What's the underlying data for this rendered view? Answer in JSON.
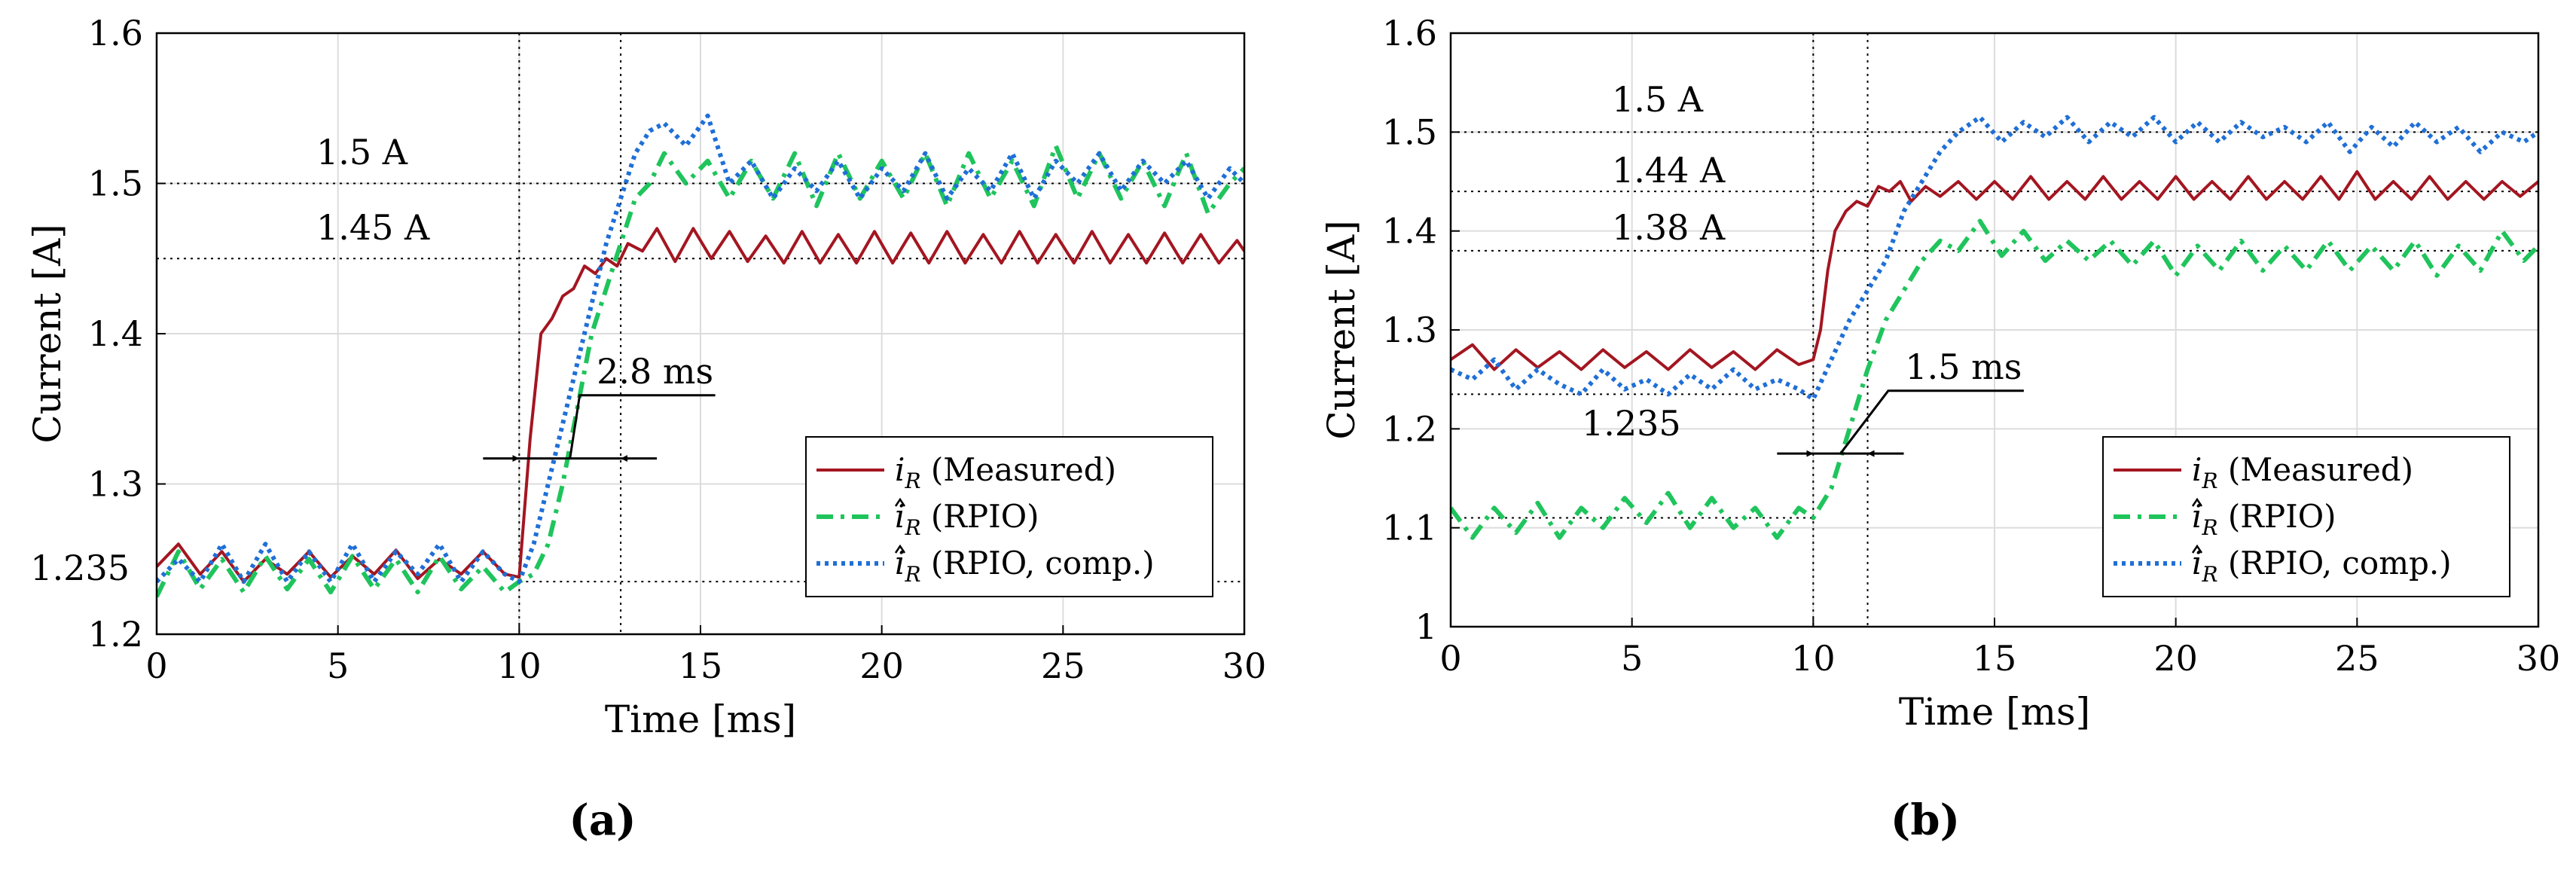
{
  "chart_data": [
    {
      "type": "line",
      "panel_label": "(a)",
      "xlabel": "Time [ms]",
      "ylabel": "Current [A]",
      "xlim": [
        0,
        30
      ],
      "ylim": [
        1.2,
        1.6
      ],
      "xticks": [
        0,
        5,
        10,
        15,
        20,
        25,
        30
      ],
      "yticks": [
        1.2,
        1.3,
        1.4,
        1.5,
        1.6
      ],
      "ytick_labels": [
        "1.2",
        "1.3",
        "1.4",
        "1.5",
        "1.6"
      ],
      "grid": true,
      "legend_position": "lower-right",
      "series": [
        {
          "name": "Measured",
          "symbol": "i",
          "hat": false,
          "color": "#a31621",
          "style": "solid",
          "x": [
            0,
            0.6,
            1.2,
            1.8,
            2.4,
            3,
            3.6,
            4.2,
            4.8,
            5.4,
            6,
            6.6,
            7.2,
            7.8,
            8.4,
            9,
            9.6,
            10,
            10.3,
            10.6,
            10.9,
            11.2,
            11.5,
            11.8,
            12.1,
            12.4,
            12.7,
            13,
            13.4,
            13.8,
            14.3,
            14.8,
            15.3,
            15.8,
            16.3,
            16.8,
            17.3,
            17.8,
            18.3,
            18.8,
            19.3,
            19.8,
            20.3,
            20.8,
            21.3,
            21.8,
            22.3,
            22.8,
            23.3,
            23.8,
            24.3,
            24.8,
            25.3,
            25.8,
            26.3,
            26.8,
            27.3,
            27.8,
            28.3,
            28.8,
            29.3,
            29.8,
            30
          ],
          "y": [
            1.245,
            1.26,
            1.24,
            1.255,
            1.235,
            1.25,
            1.24,
            1.255,
            1.238,
            1.252,
            1.24,
            1.256,
            1.237,
            1.25,
            1.24,
            1.255,
            1.24,
            1.238,
            1.33,
            1.4,
            1.41,
            1.425,
            1.43,
            1.445,
            1.44,
            1.45,
            1.445,
            1.46,
            1.455,
            1.47,
            1.448,
            1.47,
            1.45,
            1.468,
            1.448,
            1.465,
            1.447,
            1.468,
            1.447,
            1.466,
            1.447,
            1.468,
            1.447,
            1.467,
            1.447,
            1.468,
            1.447,
            1.466,
            1.447,
            1.468,
            1.447,
            1.466,
            1.447,
            1.468,
            1.447,
            1.466,
            1.447,
            1.467,
            1.447,
            1.466,
            1.447,
            1.462,
            1.455
          ]
        },
        {
          "name": "RPIO",
          "symbol": "i",
          "hat": true,
          "color": "#1fc45c",
          "style": "dashdot",
          "x": [
            0,
            0.6,
            1.2,
            1.8,
            2.4,
            3,
            3.6,
            4.2,
            4.8,
            5.4,
            6,
            6.6,
            7.2,
            7.8,
            8.4,
            9,
            9.6,
            10,
            10.4,
            10.8,
            11.2,
            11.6,
            12,
            12.4,
            12.8,
            13.2,
            13.6,
            14,
            14.6,
            15.2,
            15.8,
            16.4,
            17,
            17.6,
            18.2,
            18.8,
            19.4,
            20,
            20.6,
            21.2,
            21.8,
            22.4,
            23,
            23.6,
            24.2,
            24.8,
            25.4,
            26,
            26.6,
            27.2,
            27.8,
            28.4,
            29,
            29.6,
            30
          ],
          "y": [
            1.225,
            1.255,
            1.23,
            1.25,
            1.228,
            1.252,
            1.23,
            1.25,
            1.228,
            1.252,
            1.23,
            1.25,
            1.228,
            1.252,
            1.23,
            1.245,
            1.228,
            1.235,
            1.24,
            1.26,
            1.3,
            1.35,
            1.4,
            1.43,
            1.46,
            1.49,
            1.5,
            1.52,
            1.5,
            1.515,
            1.49,
            1.515,
            1.49,
            1.52,
            1.485,
            1.52,
            1.49,
            1.515,
            1.49,
            1.52,
            1.485,
            1.52,
            1.49,
            1.515,
            1.485,
            1.525,
            1.49,
            1.52,
            1.49,
            1.515,
            1.485,
            1.52,
            1.48,
            1.5,
            1.51
          ]
        },
        {
          "name": "RPIO, comp.",
          "symbol": "i",
          "hat": true,
          "color": "#1f6fd6",
          "style": "dotted",
          "x": [
            0,
            0.6,
            1.2,
            1.8,
            2.4,
            3,
            3.6,
            4.2,
            4.8,
            5.4,
            6,
            6.6,
            7.2,
            7.8,
            8.4,
            9,
            9.6,
            10,
            10.4,
            10.8,
            11.2,
            11.6,
            12,
            12.4,
            12.8,
            13.2,
            13.6,
            14,
            14.6,
            15.2,
            15.8,
            16.4,
            17,
            17.6,
            18.2,
            18.8,
            19.4,
            20,
            20.6,
            21.2,
            21.8,
            22.4,
            23,
            23.6,
            24.2,
            24.8,
            25.4,
            26,
            26.6,
            27.2,
            27.8,
            28.4,
            29,
            29.6,
            30
          ],
          "y": [
            1.235,
            1.25,
            1.235,
            1.26,
            1.235,
            1.26,
            1.235,
            1.255,
            1.235,
            1.26,
            1.235,
            1.255,
            1.24,
            1.26,
            1.235,
            1.255,
            1.24,
            1.235,
            1.26,
            1.3,
            1.34,
            1.38,
            1.42,
            1.46,
            1.49,
            1.52,
            1.535,
            1.54,
            1.525,
            1.545,
            1.5,
            1.515,
            1.49,
            1.51,
            1.495,
            1.515,
            1.49,
            1.51,
            1.495,
            1.52,
            1.49,
            1.51,
            1.495,
            1.52,
            1.49,
            1.515,
            1.5,
            1.52,
            1.495,
            1.515,
            1.5,
            1.515,
            1.49,
            1.51,
            1.5
          ]
        }
      ],
      "reference_lines": [
        {
          "axis": "y",
          "value": 1.5,
          "label": "1.5 A",
          "from": 0,
          "to": 30
        },
        {
          "axis": "y",
          "value": 1.45,
          "label": "1.45 A",
          "from": 0,
          "to": 30
        },
        {
          "axis": "y",
          "value": 1.235,
          "label": "",
          "from": 10,
          "to": 30
        },
        {
          "axis": "x",
          "value": 10
        },
        {
          "axis": "x",
          "value": 12.8
        }
      ],
      "label_1235": "1.235",
      "delay": {
        "from": 10,
        "to": 12.8,
        "y": 1.317,
        "label": "2.8 ms",
        "text_x": 15.2,
        "text_y": 1.36
      }
    },
    {
      "type": "line",
      "panel_label": "(b)",
      "xlabel": "Time [ms]",
      "ylabel": "Current [A]",
      "xlim": [
        0,
        30
      ],
      "ylim": [
        1.0,
        1.6
      ],
      "xticks": [
        0,
        5,
        10,
        15,
        20,
        25,
        30
      ],
      "yticks": [
        1.0,
        1.1,
        1.2,
        1.3,
        1.4,
        1.5,
        1.6
      ],
      "ytick_labels": [
        "1",
        "1.1",
        "1.2",
        "1.3",
        "1.4",
        "1.5",
        "1.6"
      ],
      "grid": true,
      "legend_position": "lower-right",
      "series": [
        {
          "name": "Measured",
          "symbol": "i",
          "hat": false,
          "color": "#a31621",
          "style": "solid",
          "x": [
            0,
            0.6,
            1.2,
            1.8,
            2.4,
            3,
            3.6,
            4.2,
            4.8,
            5.4,
            6,
            6.6,
            7.2,
            7.8,
            8.4,
            9,
            9.6,
            10,
            10.2,
            10.4,
            10.6,
            10.9,
            11.2,
            11.5,
            11.8,
            12.1,
            12.4,
            12.7,
            13.1,
            13.5,
            14,
            14.5,
            15,
            15.5,
            16,
            16.5,
            17,
            17.5,
            18,
            18.5,
            19,
            19.5,
            20,
            20.5,
            21,
            21.5,
            22,
            22.5,
            23,
            23.5,
            24,
            24.5,
            25,
            25.5,
            26,
            26.5,
            27,
            27.5,
            28,
            28.5,
            29,
            29.5,
            30
          ],
          "y": [
            1.27,
            1.285,
            1.26,
            1.28,
            1.262,
            1.278,
            1.26,
            1.28,
            1.262,
            1.278,
            1.26,
            1.28,
            1.262,
            1.278,
            1.26,
            1.28,
            1.265,
            1.27,
            1.3,
            1.36,
            1.4,
            1.42,
            1.43,
            1.425,
            1.445,
            1.44,
            1.45,
            1.43,
            1.445,
            1.435,
            1.45,
            1.432,
            1.45,
            1.432,
            1.455,
            1.432,
            1.45,
            1.432,
            1.455,
            1.432,
            1.45,
            1.432,
            1.455,
            1.432,
            1.45,
            1.432,
            1.455,
            1.432,
            1.45,
            1.432,
            1.455,
            1.432,
            1.46,
            1.432,
            1.45,
            1.432,
            1.455,
            1.432,
            1.45,
            1.432,
            1.45,
            1.435,
            1.45
          ]
        },
        {
          "name": "RPIO",
          "symbol": "i",
          "hat": true,
          "color": "#1fc45c",
          "style": "dashdot",
          "x": [
            0,
            0.6,
            1.2,
            1.8,
            2.4,
            3,
            3.6,
            4.2,
            4.8,
            5.4,
            6,
            6.6,
            7.2,
            7.8,
            8.4,
            9,
            9.6,
            10,
            10.5,
            11,
            11.5,
            12,
            12.5,
            13,
            13.5,
            14,
            14.6,
            15.2,
            15.8,
            16.4,
            17,
            17.6,
            18.2,
            18.8,
            19.4,
            20,
            20.6,
            21.2,
            21.8,
            22.4,
            23,
            23.6,
            24.2,
            24.8,
            25.4,
            26,
            26.6,
            27.2,
            27.8,
            28.4,
            29,
            29.6,
            30
          ],
          "y": [
            1.12,
            1.09,
            1.12,
            1.095,
            1.125,
            1.09,
            1.12,
            1.1,
            1.13,
            1.105,
            1.135,
            1.1,
            1.13,
            1.1,
            1.12,
            1.09,
            1.12,
            1.11,
            1.14,
            1.2,
            1.26,
            1.31,
            1.34,
            1.37,
            1.39,
            1.38,
            1.41,
            1.375,
            1.4,
            1.37,
            1.39,
            1.37,
            1.39,
            1.365,
            1.39,
            1.355,
            1.385,
            1.36,
            1.39,
            1.36,
            1.385,
            1.36,
            1.39,
            1.36,
            1.385,
            1.36,
            1.39,
            1.355,
            1.385,
            1.36,
            1.4,
            1.37,
            1.385
          ]
        },
        {
          "name": "RPIO, comp.",
          "symbol": "i",
          "hat": true,
          "color": "#1f6fd6",
          "style": "dotted",
          "x": [
            0,
            0.6,
            1.2,
            1.8,
            2.4,
            3,
            3.6,
            4.2,
            4.8,
            5.4,
            6,
            6.6,
            7.2,
            7.8,
            8.4,
            9,
            9.6,
            10,
            10.5,
            11,
            11.5,
            12,
            12.5,
            13,
            13.5,
            14,
            14.6,
            15.2,
            15.8,
            16.4,
            17,
            17.6,
            18.2,
            18.8,
            19.4,
            20,
            20.6,
            21.2,
            21.8,
            22.4,
            23,
            23.6,
            24.2,
            24.8,
            25.4,
            26,
            26.6,
            27.2,
            27.8,
            28.4,
            29,
            29.6,
            30
          ],
          "y": [
            1.26,
            1.25,
            1.27,
            1.24,
            1.26,
            1.245,
            1.235,
            1.26,
            1.24,
            1.25,
            1.235,
            1.255,
            1.24,
            1.26,
            1.24,
            1.25,
            1.24,
            1.23,
            1.27,
            1.31,
            1.34,
            1.37,
            1.42,
            1.45,
            1.48,
            1.5,
            1.515,
            1.49,
            1.51,
            1.495,
            1.515,
            1.49,
            1.51,
            1.495,
            1.515,
            1.49,
            1.51,
            1.49,
            1.51,
            1.495,
            1.505,
            1.49,
            1.51,
            1.48,
            1.505,
            1.485,
            1.51,
            1.49,
            1.505,
            1.48,
            1.5,
            1.49,
            1.5
          ]
        }
      ],
      "reference_lines": [
        {
          "axis": "y",
          "value": 1.5,
          "label": "1.5 A",
          "from": 0,
          "to": 30
        },
        {
          "axis": "y",
          "value": 1.44,
          "label": "1.44 A",
          "from": 0,
          "to": 30
        },
        {
          "axis": "y",
          "value": 1.38,
          "label": "1.38 A",
          "from": 0,
          "to": 30
        },
        {
          "axis": "y",
          "value": 1.235,
          "label": "",
          "from": 0,
          "to": 10
        },
        {
          "axis": "y",
          "value": 1.11,
          "label": "",
          "from": 0,
          "to": 10
        },
        {
          "axis": "x",
          "value": 10
        },
        {
          "axis": "x",
          "value": 11.5
        }
      ],
      "label_1235": "1.235",
      "delay": {
        "from": 10,
        "to": 11.5,
        "y": 1.175,
        "label": "1.5 ms",
        "text_x": 15.6,
        "text_y": 1.24
      }
    }
  ]
}
